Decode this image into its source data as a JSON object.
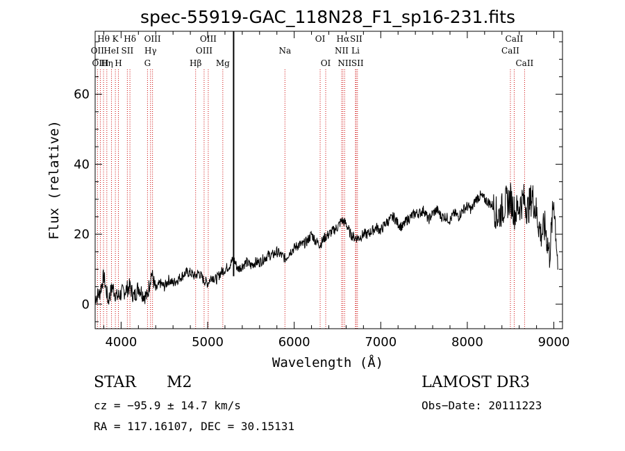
{
  "chart_data": {
    "type": "line",
    "title": "spec-55919-GAC_118N28_F1_sp16-231.fits",
    "xlabel": "Wavelength (Å)",
    "ylabel": "Flux (relative)",
    "xlim": [
      3700,
      9100
    ],
    "ylim": [
      -7,
      78
    ],
    "x_ticks": [
      4000,
      5000,
      6000,
      7000,
      8000,
      9000
    ],
    "y_ticks": [
      0,
      20,
      40,
      60
    ],
    "series": [
      {
        "name": "flux",
        "x": [
          3700,
          3750,
          3800,
          3850,
          3900,
          3950,
          4000,
          4050,
          4100,
          4150,
          4200,
          4250,
          4300,
          4350,
          4400,
          4450,
          4500,
          4550,
          4600,
          4650,
          4700,
          4750,
          4800,
          4850,
          4900,
          4950,
          5000,
          5050,
          5100,
          5150,
          5200,
          5250,
          5300,
          5350,
          5400,
          5450,
          5500,
          5550,
          5600,
          5650,
          5700,
          5750,
          5800,
          5850,
          5900,
          5950,
          6000,
          6050,
          6100,
          6150,
          6200,
          6250,
          6300,
          6350,
          6400,
          6450,
          6500,
          6550,
          6600,
          6650,
          6700,
          6750,
          6800,
          6850,
          6900,
          6950,
          7000,
          7050,
          7100,
          7150,
          7200,
          7250,
          7300,
          7350,
          7400,
          7450,
          7500,
          7550,
          7600,
          7650,
          7700,
          7750,
          7800,
          7850,
          7900,
          7950,
          8000,
          8050,
          8100,
          8150,
          8200,
          8250,
          8300,
          8350,
          8400,
          8450,
          8500,
          8550,
          8600,
          8650,
          8700,
          8750,
          8800,
          8850,
          8900,
          8950,
          9000,
          9050
        ],
        "y": [
          2,
          3,
          8,
          1,
          5,
          2,
          3,
          4,
          5,
          2,
          5,
          3,
          2,
          9,
          4,
          6,
          5,
          7,
          6,
          7,
          8,
          9,
          9,
          8,
          9,
          7,
          6,
          8,
          7,
          9,
          10,
          11,
          13,
          10,
          11,
          12,
          11,
          12,
          12,
          13,
          14,
          14,
          15,
          14,
          13,
          15,
          16,
          17,
          17,
          18,
          20,
          18,
          17,
          19,
          20,
          21,
          22,
          24,
          23,
          20,
          19,
          19,
          20,
          20,
          21,
          22,
          21,
          23,
          24,
          25,
          23,
          22,
          24,
          25,
          26,
          26,
          27,
          24,
          26,
          27,
          25,
          25,
          24,
          26,
          25,
          27,
          28,
          27,
          30,
          31,
          30,
          29,
          28,
          25,
          27,
          29,
          30,
          26,
          28,
          30,
          27,
          31,
          26,
          20,
          22,
          14,
          30,
          10
        ]
      }
    ],
    "spike": {
      "x": 5300,
      "y": 78
    },
    "lines": [
      {
        "label": "Hθ",
        "x": 3797,
        "row": 0
      },
      {
        "label": "OII",
        "x": 3727,
        "row": 1
      },
      {
        "label": "OIII",
        "x": 3760,
        "row": 2
      },
      {
        "label": "K",
        "x": 3934,
        "row": 0
      },
      {
        "label": "HeI",
        "x": 3889,
        "row": 1
      },
      {
        "label": "Hη",
        "x": 3835,
        "row": 2
      },
      {
        "label": "Hδ",
        "x": 4102,
        "row": 0
      },
      {
        "label": "SII",
        "x": 4072,
        "row": 1
      },
      {
        "label": "H",
        "x": 3969,
        "row": 2
      },
      {
        "label": "OIII",
        "x": 4363,
        "row": 0
      },
      {
        "label": "Hγ",
        "x": 4340,
        "row": 1
      },
      {
        "label": "G",
        "x": 4305,
        "row": 2
      },
      {
        "label": "OIII",
        "x": 5007,
        "row": 0
      },
      {
        "label": "OIII",
        "x": 4959,
        "row": 1
      },
      {
        "label": "Hβ",
        "x": 4861,
        "row": 2
      },
      {
        "label": "Mg",
        "x": 5175,
        "row": 2
      },
      {
        "label": "Na",
        "x": 5893,
        "row": 1
      },
      {
        "label": "OI",
        "x": 6300,
        "row": 0
      },
      {
        "label": "OI",
        "x": 6364,
        "row": 2
      },
      {
        "label": "Hα",
        "x": 6563,
        "row": 0
      },
      {
        "label": "SII",
        "x": 6716,
        "row": 0
      },
      {
        "label": "NII",
        "x": 6548,
        "row": 1
      },
      {
        "label": "Li",
        "x": 6708,
        "row": 1
      },
      {
        "label": "NII",
        "x": 6583,
        "row": 2
      },
      {
        "label": "SII",
        "x": 6731,
        "row": 2
      },
      {
        "label": "CaII",
        "x": 8542,
        "row": 0
      },
      {
        "label": "CaII",
        "x": 8498,
        "row": 1
      },
      {
        "label": "CaII",
        "x": 8662,
        "row": 2
      }
    ]
  },
  "info": {
    "class": "STAR",
    "subclass": "M2",
    "survey": "LAMOST DR3",
    "cz": "cz = −95.9 ± 14.7 km/s",
    "obs_date": "Obs−Date: 20111223",
    "coords": "RA = 117.16107, DEC =  30.15131"
  }
}
